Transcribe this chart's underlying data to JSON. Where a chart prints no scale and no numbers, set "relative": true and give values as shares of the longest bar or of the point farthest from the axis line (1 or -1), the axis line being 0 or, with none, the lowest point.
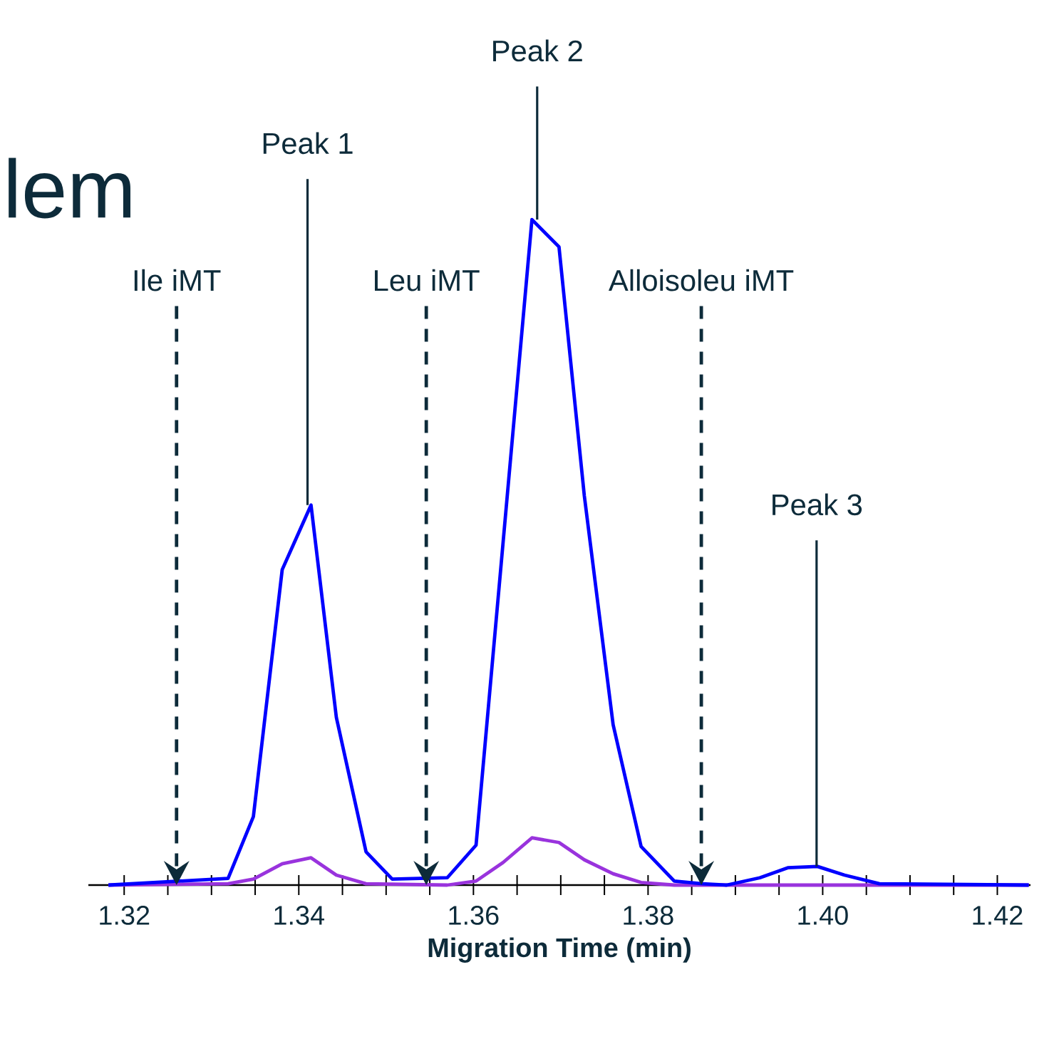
{
  "chart_data": {
    "type": "line",
    "relative": true,
    "xlabel": "Migration Time (min)",
    "xlim": [
      1.3159,
      1.4238
    ],
    "xticks": [
      1.32,
      {
        "value": 1.325,
        "label": null
      },
      1.34,
      {
        "value": 1.345,
        "label": null
      },
      1.36,
      {
        "value": 1.365,
        "label": null
      },
      1.38,
      {
        "value": 1.385,
        "label": null
      },
      {
        "value": 1.4,
        "label": "1.40"
      },
      {
        "value": 1.405,
        "label": null
      },
      1.42,
      {
        "value": 1.33,
        "label": null
      },
      {
        "value": 1.335,
        "label": null
      },
      {
        "value": 1.35,
        "label": null
      },
      {
        "value": 1.355,
        "label": null
      },
      {
        "value": 1.37,
        "label": null
      },
      {
        "value": 1.375,
        "label": null
      },
      {
        "value": 1.39,
        "label": null
      },
      {
        "value": 1.395,
        "label": null
      },
      {
        "value": 1.41,
        "label": null
      },
      {
        "value": 1.415,
        "label": null
      }
    ],
    "marker": "none",
    "line_style": "solid",
    "grid": false,
    "series": [
      {
        "color": "#9933dd",
        "x": [
          1.3182,
          1.3319,
          1.3348,
          1.3381,
          1.3414,
          1.3443,
          1.3477,
          1.357,
          1.3603,
          1.3634,
          1.3667,
          1.3698,
          1.3727,
          1.376,
          1.3792,
          1.383,
          1.4236
        ],
        "values": [
          0,
          0.002,
          0.009,
          0.032,
          0.041,
          0.015,
          0.002,
          0,
          0.006,
          0.034,
          0.071,
          0.064,
          0.038,
          0.017,
          0.004,
          0,
          0
        ]
      },
      {
        "color": "#0000ff",
        "x": [
          1.3182,
          1.3319,
          1.3348,
          1.3381,
          1.3414,
          1.3443,
          1.3477,
          1.3507,
          1.357,
          1.3603,
          1.3667,
          1.3698,
          1.3727,
          1.376,
          1.3792,
          1.383,
          1.3862,
          1.389,
          1.3928,
          1.396,
          1.3994,
          1.4025,
          1.4065,
          1.4236
        ],
        "values": [
          0,
          0.01,
          0.103,
          0.474,
          0.571,
          0.252,
          0.05,
          0.009,
          0.011,
          0.06,
          1,
          0.959,
          0.585,
          0.241,
          0.058,
          0.006,
          0.002,
          0,
          0.011,
          0.026,
          0.028,
          0.015,
          0.002,
          0
        ]
      }
    ],
    "ref_lines": [
      {
        "axis": "x",
        "value": 1.326,
        "label": "Ile iMT",
        "color": "#0d2b3a",
        "line_style": "dashed"
      },
      {
        "axis": "x",
        "value": 1.3546,
        "label": "Leu iMT",
        "color": "#0d2b3a",
        "line_style": "dashed"
      },
      {
        "axis": "x",
        "value": 1.3861,
        "label": "Alloisoleu iMT",
        "color": "#0d2b3a",
        "line_style": "dashed"
      }
    ],
    "annotations": [
      "lem",
      {
        "text": "Peak 1",
        "x": 1.341,
        "y": 0.571
      },
      {
        "text": "Peak 2",
        "x": 1.3673,
        "y": 1
      },
      {
        "text": "Peak 3",
        "x": 1.3993,
        "y": 0.028
      }
    ]
  }
}
